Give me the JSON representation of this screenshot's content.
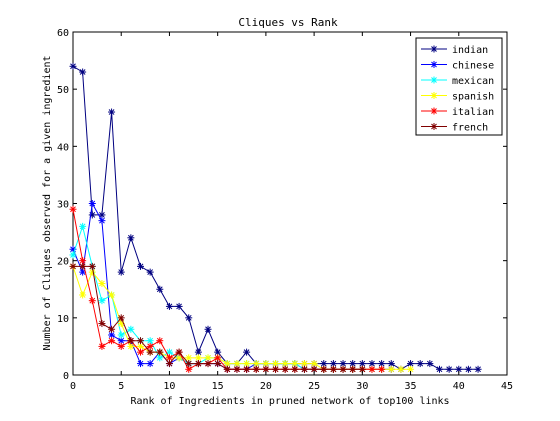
{
  "chart_data": {
    "type": "line",
    "title": "Cliques vs Rank",
    "xlabel": "Rank of Ingredients in pruned network of top100 links",
    "ylabel": "Number of Cliques observed for a given ingredient",
    "xlim": [
      0,
      45
    ],
    "ylim": [
      0,
      60
    ],
    "xticks": [
      "0",
      "5",
      "10",
      "15",
      "20",
      "25",
      "30",
      "35",
      "40",
      "45"
    ],
    "yticks": [
      "0",
      "10",
      "20",
      "30",
      "40",
      "50",
      "60"
    ],
    "grid": false,
    "legend_position": "top-right",
    "marker": "asterisk",
    "series": [
      {
        "name": "indian",
        "color": "#000080",
        "x": [
          0,
          1,
          2,
          3,
          4,
          5,
          6,
          7,
          8,
          9,
          10,
          11,
          12,
          13,
          14,
          15,
          16,
          17,
          18,
          19,
          20,
          21,
          22,
          23,
          24,
          25,
          26,
          27,
          28,
          29,
          30,
          31,
          32,
          33,
          34,
          35,
          36,
          37,
          38,
          39,
          40,
          41,
          42
        ],
        "y": [
          54,
          53,
          28,
          28,
          46,
          18,
          24,
          19,
          18,
          15,
          12,
          12,
          10,
          4,
          8,
          4,
          2,
          2,
          4,
          2,
          2,
          2,
          2,
          2,
          2,
          2,
          2,
          2,
          2,
          2,
          2,
          2,
          2,
          2,
          1,
          2,
          2,
          2,
          1,
          1,
          1,
          1,
          1
        ]
      },
      {
        "name": "chinese",
        "color": "#0000ff",
        "x": [
          0,
          1,
          2,
          3,
          4,
          5,
          6,
          7,
          8,
          9,
          10,
          11,
          12,
          13,
          14,
          15,
          16,
          17,
          18,
          19,
          20,
          21,
          22,
          23,
          24,
          25,
          26,
          27,
          28,
          29,
          30,
          31,
          32,
          33
        ],
        "y": [
          22,
          18,
          30,
          27,
          7,
          6,
          6,
          2,
          2,
          4,
          2,
          3,
          2,
          2,
          2,
          2,
          1,
          1,
          1,
          2,
          2,
          2,
          2,
          2,
          1,
          1,
          1,
          1,
          1,
          1,
          1,
          1,
          1,
          1
        ]
      },
      {
        "name": "mexican",
        "color": "#00ffff",
        "x": [
          0,
          1,
          2,
          3,
          4,
          5,
          6,
          7,
          8,
          9,
          10,
          11,
          12,
          13,
          14,
          15,
          16,
          17,
          18,
          19,
          20,
          21,
          22,
          23,
          24,
          25,
          26,
          27,
          28,
          29,
          30
        ],
        "y": [
          21,
          26,
          19,
          13,
          14,
          7,
          8,
          6,
          6,
          3,
          4,
          3,
          2,
          2,
          3,
          3,
          2,
          2,
          2,
          2,
          2,
          2,
          2,
          2,
          1,
          1,
          1,
          1,
          1,
          1,
          1
        ]
      },
      {
        "name": "spanish",
        "color": "#ffff00",
        "x": [
          0,
          1,
          2,
          3,
          4,
          5,
          6,
          7,
          8,
          9,
          10,
          11,
          12,
          13,
          14,
          15,
          16,
          17,
          18,
          19,
          20,
          21,
          22,
          23,
          24,
          25,
          26,
          27,
          28,
          29,
          30,
          31,
          32,
          33,
          34,
          35
        ],
        "y": [
          19,
          14,
          18,
          16,
          14,
          9,
          5,
          5,
          4,
          4,
          3,
          3,
          3,
          3,
          3,
          3,
          2,
          2,
          2,
          2,
          2,
          2,
          2,
          2,
          2,
          2,
          1,
          1,
          1,
          1,
          1,
          1,
          1,
          1,
          1,
          1
        ]
      },
      {
        "name": "italian",
        "color": "#ff0000",
        "x": [
          0,
          1,
          2,
          3,
          4,
          5,
          6,
          7,
          8,
          9,
          10,
          11,
          12,
          13,
          14,
          15,
          16,
          17,
          18,
          19,
          20,
          21,
          22,
          23,
          24,
          25,
          26,
          27,
          28,
          29,
          30,
          31,
          32
        ],
        "y": [
          29,
          20,
          13,
          5,
          6,
          5,
          6,
          4,
          5,
          6,
          3,
          4,
          1,
          2,
          2,
          3,
          1,
          1,
          1,
          1,
          1,
          1,
          1,
          1,
          1,
          1,
          1,
          1,
          1,
          1,
          1,
          1,
          1
        ]
      },
      {
        "name": "french",
        "color": "#800000",
        "x": [
          0,
          1,
          2,
          3,
          4,
          5,
          6,
          7,
          8,
          9,
          10,
          11,
          12,
          13,
          14,
          15,
          16,
          17,
          18,
          19,
          20,
          21,
          22,
          23,
          24,
          25,
          26,
          27,
          28,
          29,
          30
        ],
        "y": [
          19,
          19,
          19,
          9,
          8,
          10,
          6,
          6,
          4,
          4,
          2,
          4,
          2,
          2,
          2,
          2,
          1,
          1,
          1,
          1,
          1,
          1,
          1,
          1,
          1,
          1,
          1,
          1,
          1,
          1,
          1
        ]
      }
    ]
  }
}
